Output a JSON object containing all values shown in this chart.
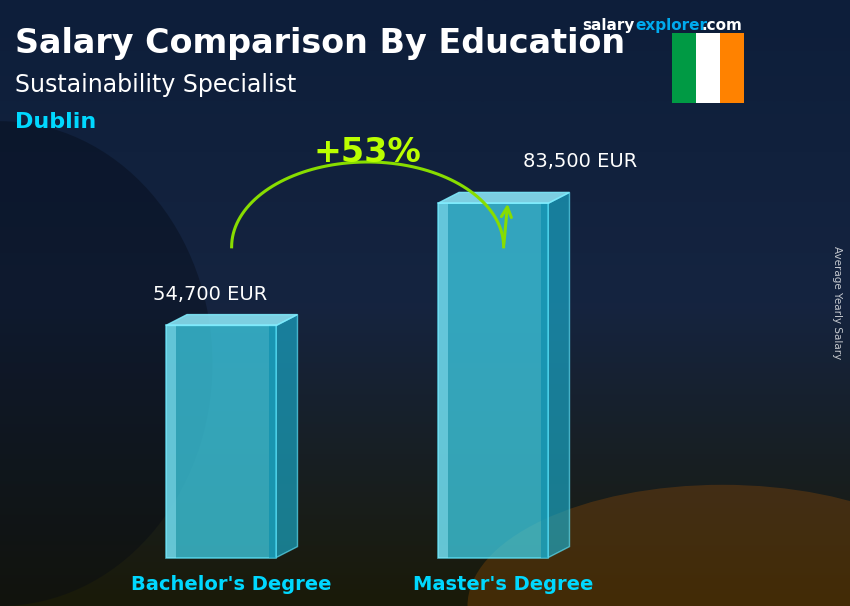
{
  "title_main": "Salary Comparison By Education",
  "title_sub": "Sustainability Specialist",
  "title_city": "Dublin",
  "categories": [
    "Bachelor's Degree",
    "Master's Degree"
  ],
  "values": [
    54700,
    83500
  ],
  "value_labels": [
    "54,700 EUR",
    "83,500 EUR"
  ],
  "pct_change": "+53%",
  "bar_front_color": "#40d8f0",
  "bar_side_color": "#1ab0d0",
  "bar_top_color": "#90eeff",
  "bar_highlight_color": "#c0f8ff",
  "bar_alpha": 0.72,
  "bg_top": "#0a1628",
  "bg_mid": "#102040",
  "bg_bot": "#2a3010",
  "ylabel_text": "Average Yearly Salary",
  "site_salary": "salary",
  "site_explorer": "explorer",
  "site_dot_com": ".com",
  "arrow_color": "#88dd00",
  "pct_color": "#bbff00",
  "cat_color": "#00d8ff",
  "figsize": [
    8.5,
    6.06
  ],
  "dpi": 100,
  "flag_green": "#009A44",
  "flag_white": "#FFFFFF",
  "flag_orange": "#FF8200",
  "title_fontsize": 24,
  "sub_fontsize": 17,
  "city_fontsize": 16,
  "label_fontsize": 14,
  "cat_fontsize": 14,
  "pct_fontsize": 24,
  "site_fontsize": 11
}
